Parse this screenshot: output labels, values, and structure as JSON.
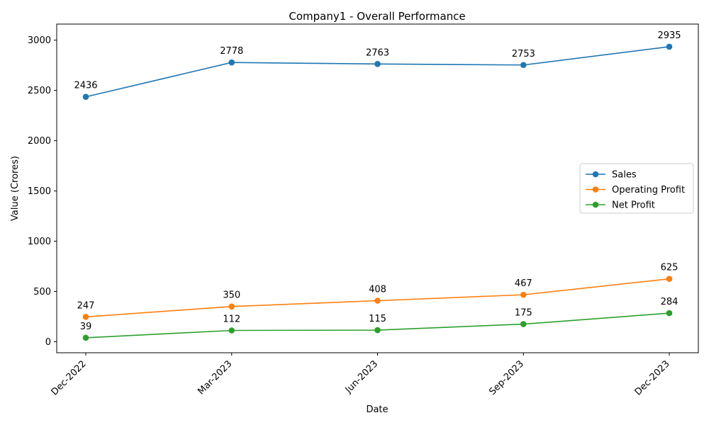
{
  "chart_data": {
    "type": "line",
    "title": "Company1 - Overall Performance",
    "xlabel": "Date",
    "ylabel": "Value (Crores)",
    "categories": [
      "Dec-2022",
      "Mar-2023",
      "Jun-2023",
      "Sep-2023",
      "Dec-2023"
    ],
    "ylim": [
      -110,
      3160
    ],
    "yticks": [
      0,
      500,
      1000,
      1500,
      2000,
      2500,
      3000
    ],
    "series": [
      {
        "name": "Sales",
        "color": "#1f77b4",
        "values": [
          2436,
          2778,
          2763,
          2753,
          2935
        ]
      },
      {
        "name": "Operating Profit",
        "color": "#ff7f0e",
        "values": [
          247,
          350,
          408,
          467,
          625
        ]
      },
      {
        "name": "Net Profit",
        "color": "#2ca02c",
        "values": [
          39,
          112,
          115,
          175,
          284
        ]
      }
    ],
    "legend_position": "center-right",
    "grid": false,
    "data_labels": true,
    "marker": "circle"
  }
}
